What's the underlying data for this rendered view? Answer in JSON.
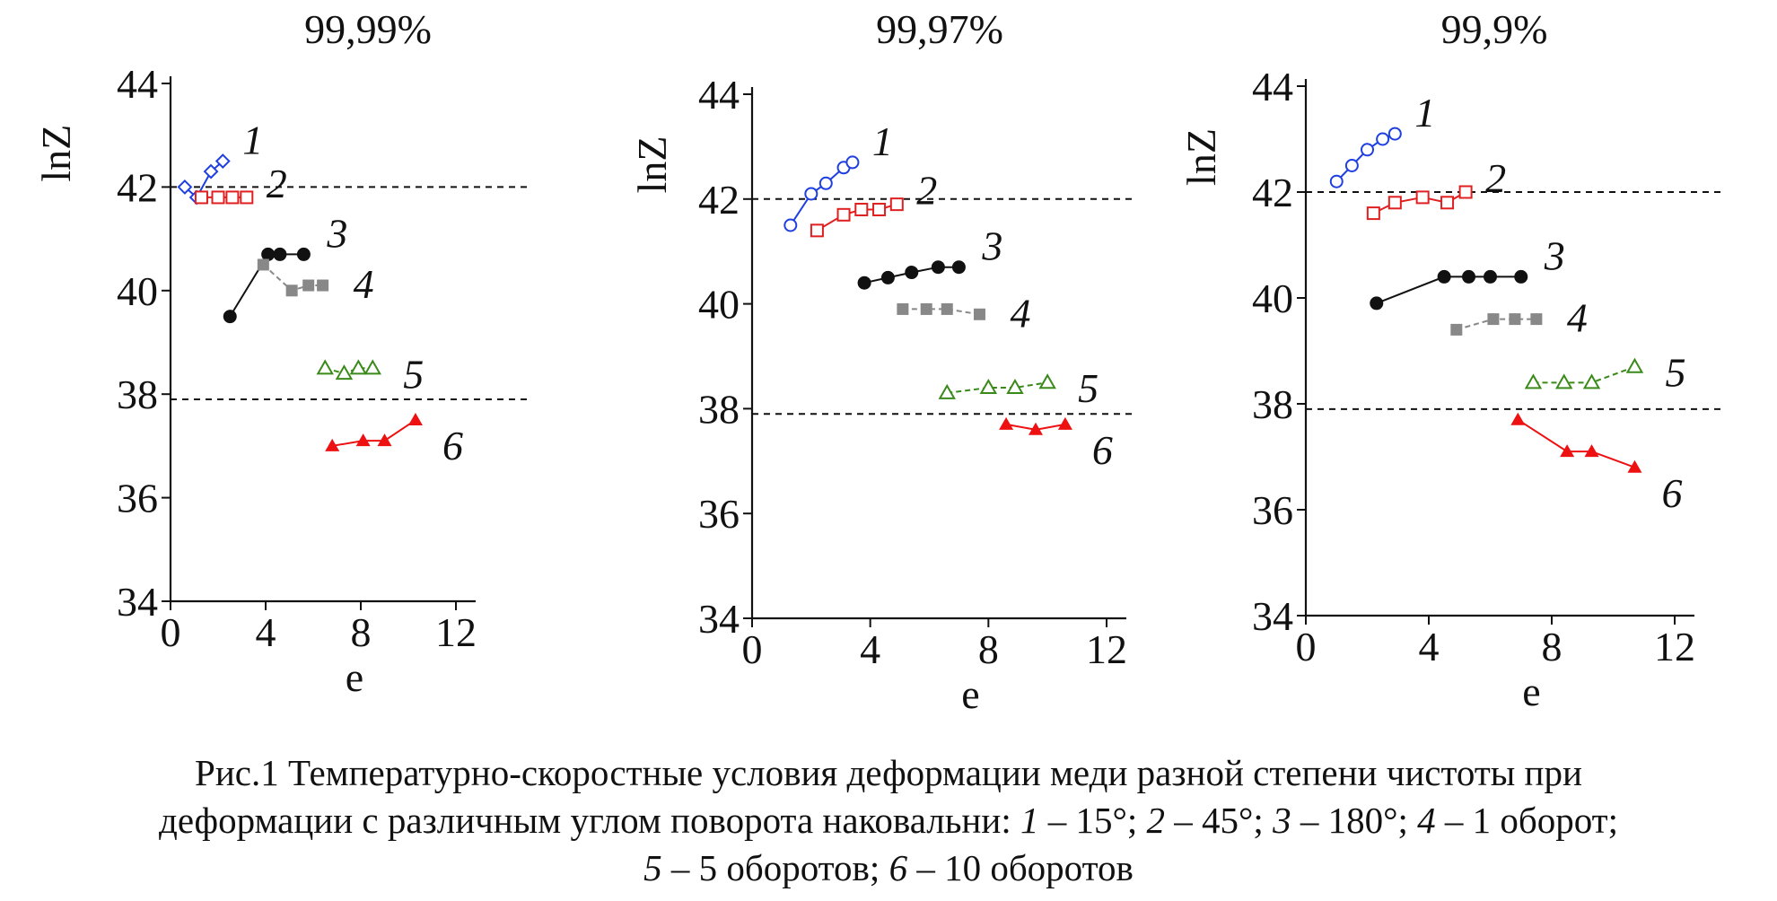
{
  "chart_data": [
    {
      "type": "scatter",
      "title": "99,99%",
      "ylabel": "lnZ",
      "xlabel": "e",
      "xlim": [
        0,
        12
      ],
      "ylim": [
        34,
        44
      ],
      "xticks": [
        "0",
        "4",
        "8",
        "12"
      ],
      "yticks": [
        "34",
        "36",
        "38",
        "40",
        "42",
        "44"
      ],
      "reference_lines": [
        42,
        37.9
      ],
      "series": [
        {
          "name": "1",
          "color": "#1f3fe0",
          "marker": "diamond-open",
          "points": [
            [
              0.6,
              42.0
            ],
            [
              1.1,
              41.8
            ],
            [
              1.7,
              42.3
            ],
            [
              2.2,
              42.5
            ]
          ]
        },
        {
          "name": "2",
          "color": "#e02020",
          "marker": "square-open",
          "points": [
            [
              1.3,
              41.8
            ],
            [
              2.0,
              41.8
            ],
            [
              2.6,
              41.8
            ],
            [
              3.2,
              41.8
            ]
          ]
        },
        {
          "name": "3",
          "color": "#111111",
          "marker": "circle-filled",
          "points": [
            [
              2.5,
              39.5
            ],
            [
              4.1,
              40.7
            ],
            [
              4.6,
              40.7
            ],
            [
              5.6,
              40.7
            ]
          ]
        },
        {
          "name": "4",
          "color": "#888888",
          "marker": "square-filled",
          "points": [
            [
              3.9,
              40.5
            ],
            [
              5.1,
              40.0
            ],
            [
              5.8,
              40.1
            ],
            [
              6.4,
              40.1
            ]
          ]
        },
        {
          "name": "5",
          "color": "#3a8a1a",
          "marker": "triangle-open",
          "points": [
            [
              6.5,
              38.5
            ],
            [
              7.3,
              38.4
            ],
            [
              7.9,
              38.5
            ],
            [
              8.5,
              38.5
            ]
          ]
        },
        {
          "name": "6",
          "color": "#ee1111",
          "marker": "triangle-filled",
          "points": [
            [
              6.8,
              37.0
            ],
            [
              8.1,
              37.1
            ],
            [
              9.0,
              37.1
            ],
            [
              10.3,
              37.5
            ]
          ]
        }
      ]
    },
    {
      "type": "scatter",
      "title": "99,97%",
      "ylabel": "lnZ",
      "xlabel": "e",
      "xlim": [
        0,
        12
      ],
      "ylim": [
        34,
        44
      ],
      "xticks": [
        "0",
        "4",
        "8",
        "12"
      ],
      "yticks": [
        "34",
        "36",
        "38",
        "40",
        "42",
        "44"
      ],
      "reference_lines": [
        42,
        37.9
      ],
      "series": [
        {
          "name": "1",
          "color": "#1f3fe0",
          "marker": "circle-open",
          "points": [
            [
              1.3,
              41.5
            ],
            [
              2.0,
              42.1
            ],
            [
              2.5,
              42.3
            ],
            [
              3.1,
              42.6
            ],
            [
              3.4,
              42.7
            ]
          ]
        },
        {
          "name": "2",
          "color": "#e02020",
          "marker": "square-open",
          "points": [
            [
              2.2,
              41.4
            ],
            [
              3.1,
              41.7
            ],
            [
              3.7,
              41.8
            ],
            [
              4.3,
              41.8
            ],
            [
              4.9,
              41.9
            ]
          ]
        },
        {
          "name": "3",
          "color": "#111111",
          "marker": "circle-filled",
          "points": [
            [
              3.8,
              40.4
            ],
            [
              4.6,
              40.5
            ],
            [
              5.4,
              40.6
            ],
            [
              6.3,
              40.7
            ],
            [
              7.0,
              40.7
            ]
          ]
        },
        {
          "name": "4",
          "color": "#888888",
          "marker": "square-filled",
          "points": [
            [
              5.1,
              39.9
            ],
            [
              5.9,
              39.9
            ],
            [
              6.6,
              39.9
            ],
            [
              7.7,
              39.8
            ]
          ]
        },
        {
          "name": "5",
          "color": "#3a8a1a",
          "marker": "triangle-open",
          "points": [
            [
              6.6,
              38.3
            ],
            [
              8.0,
              38.4
            ],
            [
              8.9,
              38.4
            ],
            [
              10.0,
              38.5
            ]
          ]
        },
        {
          "name": "6",
          "color": "#ee1111",
          "marker": "triangle-filled",
          "points": [
            [
              8.6,
              37.7
            ],
            [
              9.6,
              37.6
            ],
            [
              10.6,
              37.7
            ]
          ]
        }
      ]
    },
    {
      "type": "scatter",
      "title": "99,9%",
      "ylabel": "lnZ",
      "xlabel": "e",
      "xlim": [
        0,
        12
      ],
      "ylim": [
        34,
        44
      ],
      "xticks": [
        "0",
        "4",
        "8",
        "12"
      ],
      "yticks": [
        "34",
        "36",
        "38",
        "40",
        "42",
        "44"
      ],
      "reference_lines": [
        42,
        37.9
      ],
      "series": [
        {
          "name": "1",
          "color": "#1f3fe0",
          "marker": "circle-open",
          "points": [
            [
              1.0,
              42.2
            ],
            [
              1.5,
              42.5
            ],
            [
              2.0,
              42.8
            ],
            [
              2.5,
              43.0
            ],
            [
              2.9,
              43.1
            ]
          ]
        },
        {
          "name": "2",
          "color": "#e02020",
          "marker": "square-open",
          "points": [
            [
              2.2,
              41.6
            ],
            [
              2.9,
              41.8
            ],
            [
              3.8,
              41.9
            ],
            [
              4.6,
              41.8
            ],
            [
              5.2,
              42.0
            ]
          ]
        },
        {
          "name": "3",
          "color": "#111111",
          "marker": "circle-filled",
          "points": [
            [
              2.3,
              39.9
            ],
            [
              4.5,
              40.4
            ],
            [
              5.3,
              40.4
            ],
            [
              6.0,
              40.4
            ],
            [
              7.0,
              40.4
            ]
          ]
        },
        {
          "name": "4",
          "color": "#888888",
          "marker": "square-filled",
          "points": [
            [
              4.9,
              39.4
            ],
            [
              6.1,
              39.6
            ],
            [
              6.8,
              39.6
            ],
            [
              7.5,
              39.6
            ]
          ]
        },
        {
          "name": "5",
          "color": "#3a8a1a",
          "marker": "triangle-open",
          "points": [
            [
              7.4,
              38.4
            ],
            [
              8.4,
              38.4
            ],
            [
              9.3,
              38.4
            ],
            [
              10.7,
              38.7
            ]
          ]
        },
        {
          "name": "6",
          "color": "#ee1111",
          "marker": "triangle-filled",
          "points": [
            [
              6.9,
              37.7
            ],
            [
              8.5,
              37.1
            ],
            [
              9.3,
              37.1
            ],
            [
              10.7,
              36.8
            ]
          ]
        }
      ]
    }
  ],
  "caption": {
    "line1": "Рис.1 Температурно-скоростные условия деформации меди разной степени чистоты при",
    "line2_pre": "деформации с различным углом поворота наковальни: ",
    "n1": "1",
    "t1": " – 15°; ",
    "n2": "2",
    "t2": " – 45°; ",
    "n3": "3",
    "t3": " – 180°; ",
    "n4": "4",
    "t4": " – 1 оборот;",
    "n5": "5",
    "t5": " – 5 оборотов; ",
    "n6": "6",
    "t6": " – 10 оборотов"
  }
}
